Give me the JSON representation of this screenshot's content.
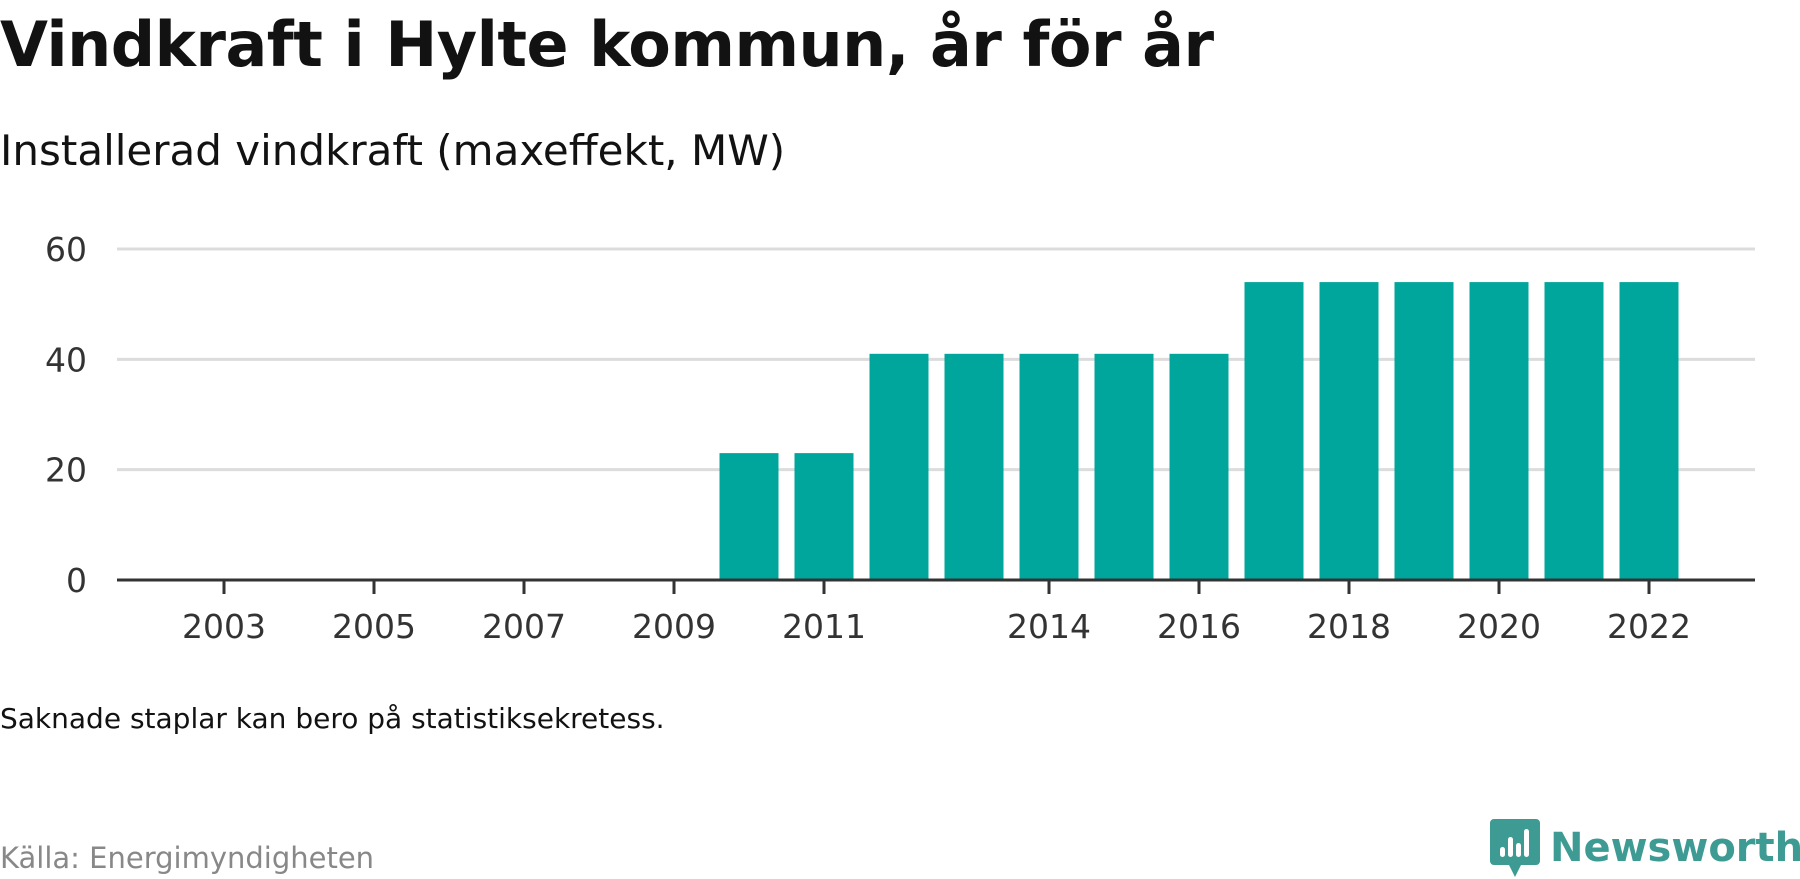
{
  "header": {
    "title": "Vindkraft i Hylte kommun, år för år",
    "subtitle": "Installerad vindkraft (maxeffekt, MW)"
  },
  "footer": {
    "note": "Saknade staplar kan bero på statistiksekretess.",
    "source": "Källa: Energimyndigheten",
    "brand": "Newsworthy"
  },
  "colors": {
    "bar": "#00a59b",
    "grid": "#dcdcdc",
    "axis": "#333333",
    "tick_text": "#333333",
    "brand": "#3e9b94"
  },
  "chart_data": {
    "type": "bar",
    "title": "Vindkraft i Hylte kommun, år för år",
    "subtitle": "Installerad vindkraft (maxeffekt, MW)",
    "categories": [
      "2002",
      "2003",
      "2004",
      "2005",
      "2006",
      "2007",
      "2008",
      "2009",
      "2010",
      "2011",
      "2012",
      "2013",
      "2014",
      "2015",
      "2016",
      "2017",
      "2018",
      "2019",
      "2020",
      "2021",
      "2022"
    ],
    "x_tick_labels": [
      "2003",
      "2005",
      "2007",
      "2009",
      "2011",
      "2014",
      "2016",
      "2018",
      "2020",
      "2022"
    ],
    "values": [
      0,
      0,
      0,
      0,
      0,
      0,
      0,
      0,
      23,
      23,
      41,
      41,
      41,
      41,
      41,
      54,
      54,
      54,
      54,
      54,
      54
    ],
    "ylim": [
      0,
      60
    ],
    "yticks": [
      0,
      20,
      40,
      60
    ],
    "grid": true,
    "xlabel": "",
    "ylabel": ""
  }
}
